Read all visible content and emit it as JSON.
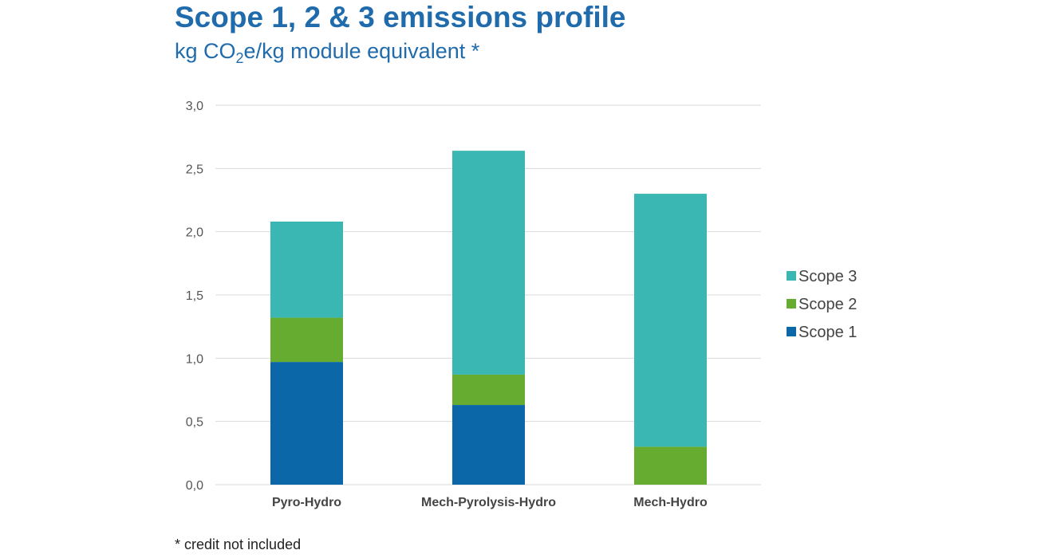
{
  "title": "Scope 1, 2 & 3 emissions profile",
  "subtitle": {
    "pre": "kg CO",
    "sub": "2",
    "post": "e/kg module equivalent *"
  },
  "footnote": "* credit not included",
  "colors": {
    "title": "#1f6bab",
    "scope1": "#0b67a8",
    "scope2": "#65ac30",
    "scope3": "#3bb7b3",
    "grid": "#d9d9d9"
  },
  "chart_data": {
    "type": "bar",
    "stacked": true,
    "categories": [
      "Pyro-Hydro",
      "Mech-Pyrolysis-Hydro",
      "Mech-Hydro"
    ],
    "series": [
      {
        "name": "Scope 1",
        "color": "#0b67a8",
        "values": [
          0.97,
          0.63,
          0.0
        ]
      },
      {
        "name": "Scope 2",
        "color": "#65ac30",
        "values": [
          0.35,
          0.24,
          0.3
        ]
      },
      {
        "name": "Scope 3",
        "color": "#3bb7b3",
        "values": [
          0.76,
          1.77,
          2.0
        ]
      }
    ],
    "ylim": [
      0,
      3.0
    ],
    "yticks": [
      "0,0",
      "0,5",
      "1,0",
      "1,5",
      "2,0",
      "2,5",
      "3,0"
    ],
    "yticks_values": [
      0,
      0.5,
      1.0,
      1.5,
      2.0,
      2.5,
      3.0
    ],
    "grid": true,
    "legend": {
      "position": "right",
      "order": [
        "Scope 3",
        "Scope 2",
        "Scope 1"
      ]
    }
  }
}
